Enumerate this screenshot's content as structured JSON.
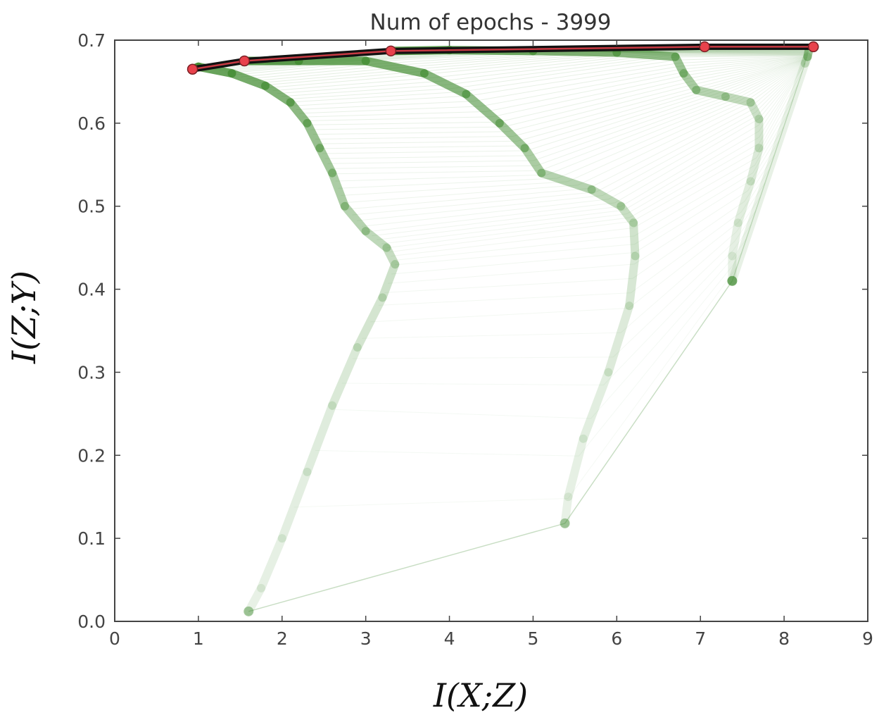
{
  "chart_data": {
    "type": "line",
    "title": "Num of epochs - 3999",
    "xlabel": "I(X;Z)",
    "ylabel": "I(Z;Y)",
    "xlim": [
      0,
      9
    ],
    "ylim": [
      0.0,
      0.7
    ],
    "xticks": [
      "0",
      "1",
      "2",
      "3",
      "4",
      "5",
      "6",
      "7",
      "8",
      "9"
    ],
    "yticks": [
      "0.0",
      "0.1",
      "0.2",
      "0.3",
      "0.4",
      "0.5",
      "0.6",
      "0.7"
    ],
    "grid": false,
    "legend": "none",
    "colors": {
      "trajectory": "#3f8a2e",
      "final_line": "#111111",
      "final_marker": "#e8424c"
    },
    "series": [
      {
        "points": [
          [
            1.6,
            0.012
          ],
          [
            1.75,
            0.04
          ],
          [
            2.0,
            0.1
          ],
          [
            2.3,
            0.18
          ],
          [
            2.6,
            0.26
          ],
          [
            2.9,
            0.33
          ],
          [
            3.2,
            0.39
          ],
          [
            3.35,
            0.43
          ],
          [
            3.25,
            0.45
          ],
          [
            3.0,
            0.47
          ],
          [
            2.75,
            0.5
          ],
          [
            2.6,
            0.54
          ],
          [
            2.45,
            0.57
          ],
          [
            2.3,
            0.6
          ],
          [
            2.1,
            0.625
          ],
          [
            1.8,
            0.645
          ],
          [
            1.4,
            0.66
          ],
          [
            1.0,
            0.668
          ],
          [
            0.93,
            0.665
          ]
        ]
      },
      {
        "points": [
          [
            5.38,
            0.118
          ],
          [
            5.42,
            0.15
          ],
          [
            5.6,
            0.22
          ],
          [
            5.9,
            0.3
          ],
          [
            6.15,
            0.38
          ],
          [
            6.22,
            0.44
          ],
          [
            6.2,
            0.48
          ],
          [
            6.05,
            0.5
          ],
          [
            5.7,
            0.52
          ],
          [
            5.1,
            0.54
          ],
          [
            4.9,
            0.57
          ],
          [
            4.6,
            0.6
          ],
          [
            4.2,
            0.635
          ],
          [
            3.7,
            0.66
          ],
          [
            3.0,
            0.675
          ],
          [
            2.2,
            0.675
          ],
          [
            1.55,
            0.675
          ]
        ]
      },
      {
        "points": [
          [
            7.38,
            0.41
          ],
          [
            7.38,
            0.44
          ],
          [
            7.45,
            0.48
          ],
          [
            7.6,
            0.53
          ],
          [
            7.7,
            0.57
          ],
          [
            7.7,
            0.605
          ],
          [
            7.6,
            0.625
          ],
          [
            7.3,
            0.632
          ],
          [
            6.95,
            0.64
          ],
          [
            6.8,
            0.66
          ],
          [
            6.7,
            0.68
          ],
          [
            6.0,
            0.685
          ],
          [
            5.0,
            0.687
          ],
          [
            4.0,
            0.688
          ],
          [
            3.3,
            0.687
          ]
        ]
      },
      {
        "points": [
          [
            7.38,
            0.41
          ],
          [
            8.25,
            0.672
          ],
          [
            8.28,
            0.68
          ],
          [
            8.3,
            0.69
          ]
        ]
      }
    ],
    "fan_links": [
      [
        [
          1.6,
          0.012
        ],
        [
          5.38,
          0.118
        ]
      ],
      [
        [
          5.38,
          0.118
        ],
        [
          7.38,
          0.41
        ]
      ],
      [
        [
          7.38,
          0.41
        ],
        [
          8.25,
          0.672
        ]
      ]
    ],
    "final_points": [
      [
        0.93,
        0.665
      ],
      [
        1.55,
        0.675
      ],
      [
        3.3,
        0.687
      ],
      [
        7.05,
        0.692
      ],
      [
        8.35,
        0.692
      ]
    ]
  }
}
